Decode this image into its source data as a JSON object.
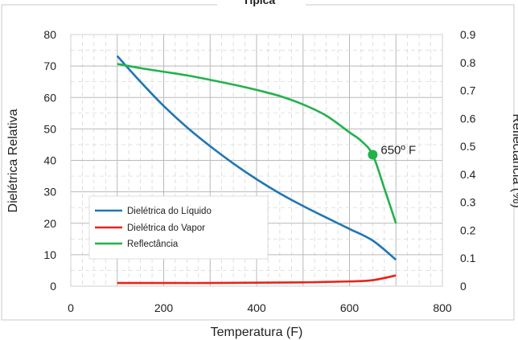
{
  "chart_data": {
    "type": "line",
    "title": "Típica",
    "xlabel": "Temperatura (F)",
    "ylabel": "Dielétrica Relativa",
    "y2label": "Reflectância (%)",
    "xlim": [
      0,
      800
    ],
    "ylim": [
      0,
      80
    ],
    "y2lim": [
      0,
      0.9
    ],
    "xticks": [
      "0",
      "200",
      "400",
      "600",
      "800"
    ],
    "yticks": [
      "0",
      "10",
      "20",
      "30",
      "40",
      "50",
      "60",
      "70",
      "80"
    ],
    "y2ticks": [
      "0",
      "0.1",
      "0.2",
      "0.3",
      "0.4",
      "0.5",
      "0.6",
      "0.7",
      "0.8",
      "0.9"
    ],
    "grid": true,
    "legend_position": "lower-left",
    "series": [
      {
        "name": "Dielétrica do Líquido",
        "axis": "left",
        "color": "#1f77b4",
        "x": [
          100,
          150,
          200,
          250,
          300,
          350,
          400,
          450,
          500,
          550,
          600,
          650,
          700
        ],
        "y": [
          73.2,
          65.0,
          57.3,
          50.5,
          44.5,
          39.0,
          34.0,
          29.5,
          25.5,
          21.8,
          18.2,
          14.5,
          8.4
        ]
      },
      {
        "name": "Dielétrica do Vapor",
        "axis": "left",
        "color": "#e8241c",
        "x": [
          100,
          200,
          300,
          400,
          500,
          600,
          650,
          700
        ],
        "y": [
          1.0,
          1.0,
          1.0,
          1.1,
          1.2,
          1.5,
          1.9,
          3.4
        ]
      },
      {
        "name": "Reflectância",
        "axis": "right",
        "color": "#22b24c",
        "x": [
          100,
          150,
          200,
          250,
          300,
          350,
          400,
          450,
          500,
          550,
          600,
          625,
          650,
          675,
          700
        ],
        "y": [
          0.795,
          0.78,
          0.767,
          0.754,
          0.738,
          0.721,
          0.702,
          0.68,
          0.65,
          0.61,
          0.55,
          0.52,
          0.47,
          0.35,
          0.225
        ]
      }
    ],
    "annotations": [
      {
        "label": "650º F",
        "x": 650,
        "y": 0.47,
        "axis": "right"
      }
    ]
  }
}
